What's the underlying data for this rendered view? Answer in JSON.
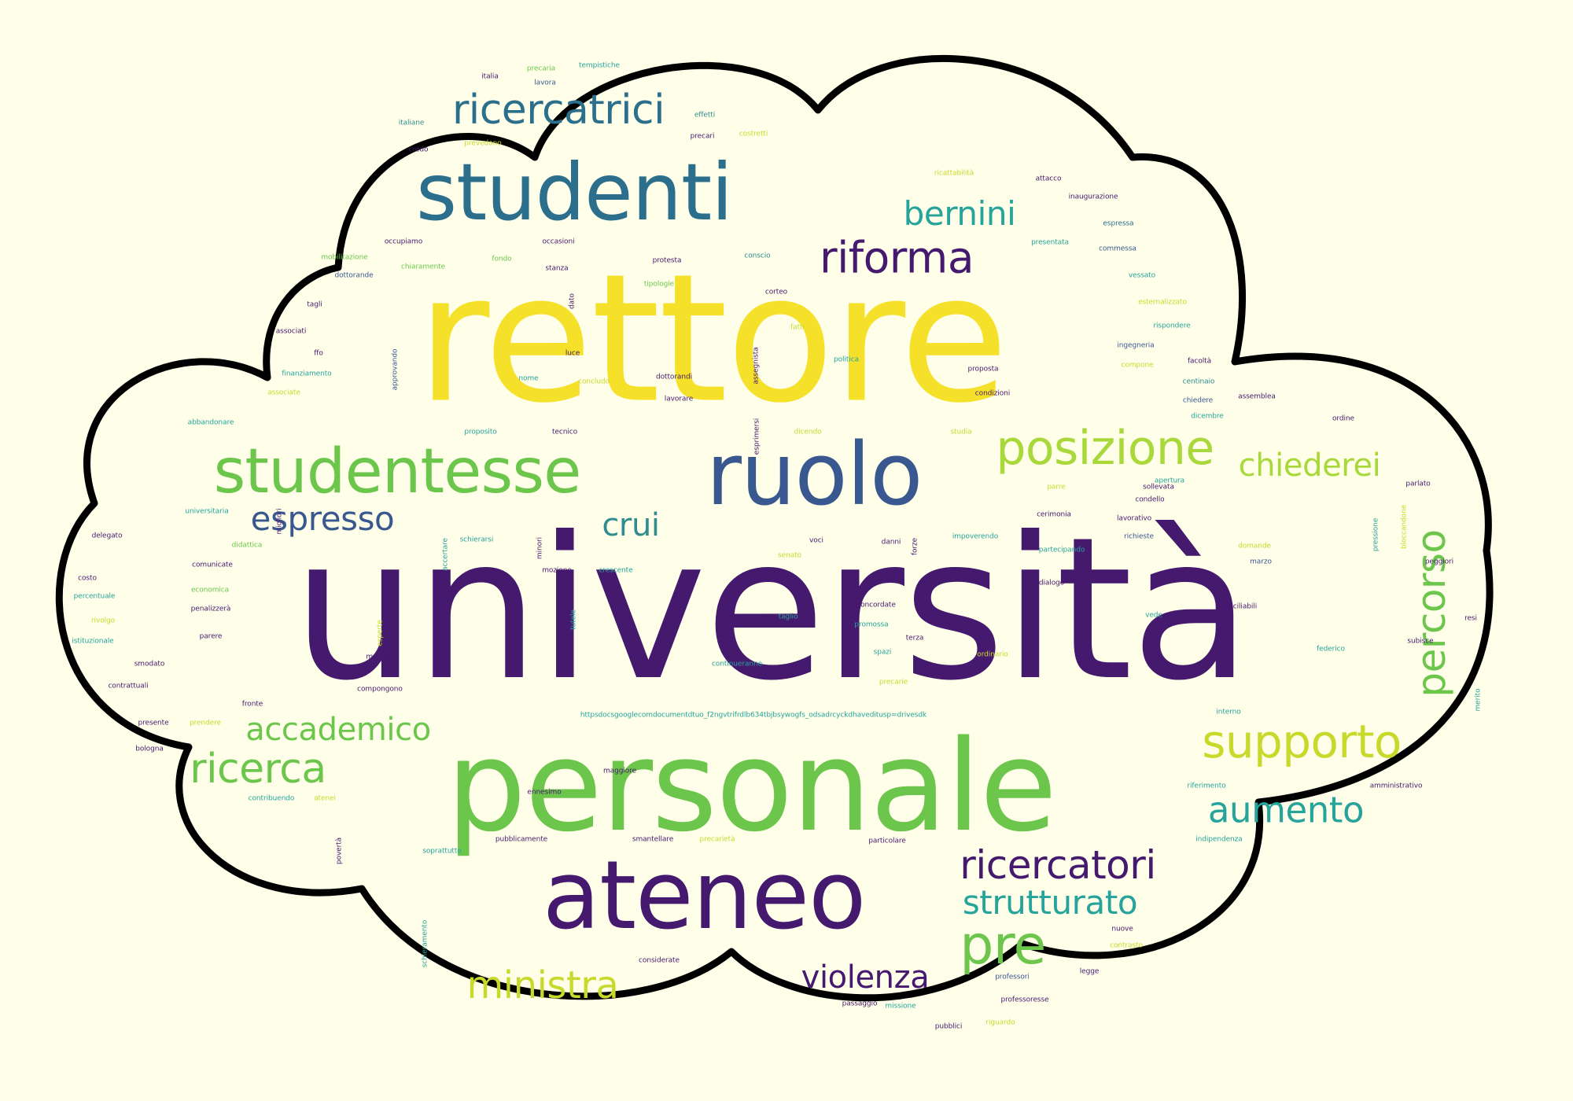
{
  "colors": {
    "background": "#fefee9",
    "cloud_fill": "#fefee9",
    "cloud_outline": "#000000"
  },
  "words": [
    {
      "text": "università",
      "color": "#45196e"
    },
    {
      "text": "rettore",
      "color": "#f5e12a"
    },
    {
      "text": "personale",
      "color": "#6cc64c"
    },
    {
      "text": "studenti",
      "color": "#2b6f8d"
    },
    {
      "text": "ateneo",
      "color": "#45196e"
    },
    {
      "text": "ruolo",
      "color": "#3a5890"
    },
    {
      "text": "studentesse",
      "color": "#6cc64c"
    },
    {
      "text": "posizione",
      "color": "#a9d83b"
    },
    {
      "text": "ricercatrici",
      "color": "#2b6f8d"
    },
    {
      "text": "supporto",
      "color": "#c7da2b"
    },
    {
      "text": "riforma",
      "color": "#45196e"
    },
    {
      "text": "ricercatori",
      "color": "#45196e"
    },
    {
      "text": "bernini",
      "color": "#26a39a"
    },
    {
      "text": "chiederei",
      "color": "#a9d83b"
    },
    {
      "text": "aumento",
      "color": "#26a39a"
    },
    {
      "text": "percorso",
      "color": "#6cc64c"
    },
    {
      "text": "espresso",
      "color": "#3a5890"
    },
    {
      "text": "crui",
      "color": "#2f8c8f"
    },
    {
      "text": "accademico",
      "color": "#6cc64c"
    },
    {
      "text": "ricerca",
      "color": "#6cc64c"
    },
    {
      "text": "strutturato",
      "color": "#26a39a"
    },
    {
      "text": "pre",
      "color": "#6cc64c"
    },
    {
      "text": "ministra",
      "color": "#c7da2b"
    },
    {
      "text": "violenza",
      "color": "#45196e"
    },
    {
      "text": "italia",
      "color": "#45196e"
    },
    {
      "text": "precaria",
      "color": "#6cc64c"
    },
    {
      "text": "tempistiche",
      "color": "#26a39a"
    },
    {
      "text": "lavora",
      "color": "#3a5890"
    },
    {
      "text": "effetti",
      "color": "#2f8c8f"
    },
    {
      "text": "italiane",
      "color": "#2f8c8f"
    },
    {
      "text": "precari",
      "color": "#45196e"
    },
    {
      "text": "costretti",
      "color": "#c7da2b"
    },
    {
      "text": "credo",
      "color": "#45196e"
    },
    {
      "text": "prevedono",
      "color": "#c7da2b"
    },
    {
      "text": "ricattabilità",
      "color": "#c7da2b"
    },
    {
      "text": "attacco",
      "color": "#45196e"
    },
    {
      "text": "inaugurazione",
      "color": "#45196e"
    },
    {
      "text": "espressa",
      "color": "#2b6f8d"
    },
    {
      "text": "presentata",
      "color": "#26a39a"
    },
    {
      "text": "commessa",
      "color": "#3a5890"
    },
    {
      "text": "occupiamo",
      "color": "#45196e"
    },
    {
      "text": "occasioni",
      "color": "#45196e"
    },
    {
      "text": "mobilitazione",
      "color": "#6cc64c"
    },
    {
      "text": "fondo",
      "color": "#6cc64c"
    },
    {
      "text": "protesta",
      "color": "#45196e"
    },
    {
      "text": "conscio",
      "color": "#2f8c8f"
    },
    {
      "text": "dottorande",
      "color": "#3a5890"
    },
    {
      "text": "chiaramente",
      "color": "#6cc64c"
    },
    {
      "text": "stanza",
      "color": "#45196e"
    },
    {
      "text": "tipologie",
      "color": "#6cc64c"
    },
    {
      "text": "vessato",
      "color": "#26a39a"
    },
    {
      "text": "tagli",
      "color": "#45196e"
    },
    {
      "text": "dato",
      "color": "#45196e"
    },
    {
      "text": "corteo",
      "color": "#45196e"
    },
    {
      "text": "esternalizzato",
      "color": "#c7da2b"
    },
    {
      "text": "associati",
      "color": "#45196e"
    },
    {
      "text": "fatti",
      "color": "#c7da2b"
    },
    {
      "text": "rispondere",
      "color": "#26a39a"
    },
    {
      "text": "ffo",
      "color": "#45196e"
    },
    {
      "text": "luce",
      "color": "#45196e"
    },
    {
      "text": "assegnista",
      "color": "#45196e"
    },
    {
      "text": "ingegneria",
      "color": "#3a5890"
    },
    {
      "text": "approvando",
      "color": "#3a5890"
    },
    {
      "text": "politica",
      "color": "#26a39a"
    },
    {
      "text": "proposta",
      "color": "#45196e"
    },
    {
      "text": "facoltà",
      "color": "#45196e"
    },
    {
      "text": "finanziamento",
      "color": "#26a39a"
    },
    {
      "text": "nome",
      "color": "#26a39a"
    },
    {
      "text": "dottorandi",
      "color": "#45196e"
    },
    {
      "text": "compone",
      "color": "#c7da2b"
    },
    {
      "text": "associate",
      "color": "#c7da2b"
    },
    {
      "text": "concludo",
      "color": "#c7da2b"
    },
    {
      "text": "lavorare",
      "color": "#45196e"
    },
    {
      "text": "condizioni",
      "color": "#45196e"
    },
    {
      "text": "centinaio",
      "color": "#2f8c8f"
    },
    {
      "text": "chiedere",
      "color": "#3a5890"
    },
    {
      "text": "assemblea",
      "color": "#45196e"
    },
    {
      "text": "abbandonare",
      "color": "#26a39a"
    },
    {
      "text": "esprimersi",
      "color": "#45196e"
    },
    {
      "text": "dicembre",
      "color": "#26a39a"
    },
    {
      "text": "ordine",
      "color": "#45196e"
    },
    {
      "text": "proposito",
      "color": "#26a39a"
    },
    {
      "text": "tecnico",
      "color": "#45196e"
    },
    {
      "text": "dicendo",
      "color": "#c7da2b"
    },
    {
      "text": "studia",
      "color": "#c7da2b"
    },
    {
      "text": "parlato",
      "color": "#45196e"
    },
    {
      "text": "parre",
      "color": "#c7da2b"
    },
    {
      "text": "apertura",
      "color": "#26a39a"
    },
    {
      "text": "sollevata",
      "color": "#45196e"
    },
    {
      "text": "universitaria",
      "color": "#26a39a"
    },
    {
      "text": "migliori",
      "color": "#45196e"
    },
    {
      "text": "condello",
      "color": "#45196e"
    },
    {
      "text": "bloccandone",
      "color": "#c7da2b"
    },
    {
      "text": "pressione",
      "color": "#26a39a"
    },
    {
      "text": "delegato",
      "color": "#45196e"
    },
    {
      "text": "cerimonia",
      "color": "#45196e"
    },
    {
      "text": "lavorativo",
      "color": "#45196e"
    },
    {
      "text": "impoverendo",
      "color": "#26a39a"
    },
    {
      "text": "forze",
      "color": "#45196e"
    },
    {
      "text": "schierarsi",
      "color": "#26a39a"
    },
    {
      "text": "accertare",
      "color": "#26a39a"
    },
    {
      "text": "minori",
      "color": "#45196e"
    },
    {
      "text": "didattica",
      "color": "#6cc64c"
    },
    {
      "text": "richieste",
      "color": "#3a5890"
    },
    {
      "text": "voci",
      "color": "#45196e"
    },
    {
      "text": "danni",
      "color": "#45196e"
    },
    {
      "text": "partecipando",
      "color": "#26a39a"
    },
    {
      "text": "domande",
      "color": "#c7da2b"
    },
    {
      "text": "peggiori",
      "color": "#45196e"
    },
    {
      "text": "comunicate",
      "color": "#45196e"
    },
    {
      "text": "senato",
      "color": "#c7da2b"
    },
    {
      "text": "mozione",
      "color": "#45196e"
    },
    {
      "text": "crescente",
      "color": "#26a39a"
    },
    {
      "text": "dialogo",
      "color": "#45196e"
    },
    {
      "text": "marzo",
      "color": "#3a5890"
    },
    {
      "text": "costo",
      "color": "#45196e"
    },
    {
      "text": "economica",
      "color": "#6cc64c"
    },
    {
      "text": "percentuale",
      "color": "#26a39a"
    },
    {
      "text": "concordate",
      "color": "#45196e"
    },
    {
      "text": "conciliabili",
      "color": "#45196e"
    },
    {
      "text": "penalizzerà",
      "color": "#45196e"
    },
    {
      "text": "rivolgo",
      "color": "#c7da2b"
    },
    {
      "text": "tutele",
      "color": "#26a39a"
    },
    {
      "text": "taglio",
      "color": "#26a39a"
    },
    {
      "text": "promossa",
      "color": "#26a39a"
    },
    {
      "text": "vede",
      "color": "#26a39a"
    },
    {
      "text": "resi",
      "color": "#45196e"
    },
    {
      "text": "istituzionale",
      "color": "#26a39a"
    },
    {
      "text": "parere",
      "color": "#45196e"
    },
    {
      "text": "esperte",
      "color": "#c7da2b"
    },
    {
      "text": "terza",
      "color": "#45196e"
    },
    {
      "text": "federico",
      "color": "#26a39a"
    },
    {
      "text": "subisce",
      "color": "#45196e"
    },
    {
      "text": "smodato",
      "color": "#45196e"
    },
    {
      "text": "membro",
      "color": "#45196e"
    },
    {
      "text": "spazi",
      "color": "#26a39a"
    },
    {
      "text": "ordinario",
      "color": "#c7da2b"
    },
    {
      "text": "continueranno",
      "color": "#26a39a"
    },
    {
      "text": "contrattuali",
      "color": "#45196e"
    },
    {
      "text": "compongono",
      "color": "#45196e"
    },
    {
      "text": "precarie",
      "color": "#c7da2b"
    },
    {
      "text": "fronte",
      "color": "#45196e"
    },
    {
      "text": "merito",
      "color": "#26a39a"
    },
    {
      "text": "presente",
      "color": "#45196e"
    },
    {
      "text": "prendere",
      "color": "#c7da2b"
    },
    {
      "text": "httpsdocsgooglecomdocumentdtuo_f2ngvtrifrdlb634tbjbsywogfs_odsadrcyckdhaveditusp=drivesdk",
      "color": "#26a39a"
    },
    {
      "text": "interno",
      "color": "#26a39a"
    },
    {
      "text": "bologna",
      "color": "#45196e"
    },
    {
      "text": "maggiore",
      "color": "#45196e"
    },
    {
      "text": "riferimento",
      "color": "#26a39a"
    },
    {
      "text": "amministrativo",
      "color": "#45196e"
    },
    {
      "text": "contribuendo",
      "color": "#26a39a"
    },
    {
      "text": "atenei",
      "color": "#c7da2b"
    },
    {
      "text": "ennesimo",
      "color": "#45196e"
    },
    {
      "text": "povertà",
      "color": "#45196e"
    },
    {
      "text": "pubblicamente",
      "color": "#45196e"
    },
    {
      "text": "smantellare",
      "color": "#45196e"
    },
    {
      "text": "precarietà",
      "color": "#c7da2b"
    },
    {
      "text": "particolare",
      "color": "#45196e"
    },
    {
      "text": "indipendenza",
      "color": "#26a39a"
    },
    {
      "text": "soprattutto",
      "color": "#26a39a"
    },
    {
      "text": "schieramento",
      "color": "#26a39a"
    },
    {
      "text": "nuove",
      "color": "#45196e"
    },
    {
      "text": "contrasto",
      "color": "#c7da2b"
    },
    {
      "text": "considerate",
      "color": "#45196e"
    },
    {
      "text": "professori",
      "color": "#3a5890"
    },
    {
      "text": "legge",
      "color": "#45196e"
    },
    {
      "text": "passaggio",
      "color": "#45196e"
    },
    {
      "text": "missione",
      "color": "#26a39a"
    },
    {
      "text": "professoresse",
      "color": "#45196e"
    },
    {
      "text": "pubblici",
      "color": "#45196e"
    },
    {
      "text": "riguardo",
      "color": "#c7da2b"
    }
  ]
}
